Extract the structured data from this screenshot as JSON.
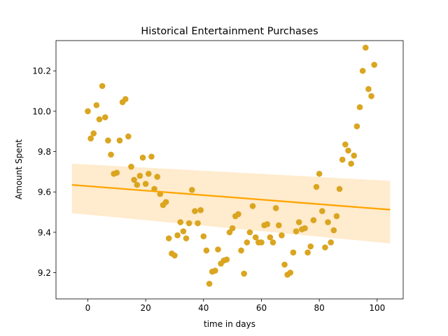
{
  "chart_data": {
    "type": "scatter",
    "title": "Historical Entertainment Purchases",
    "xlabel": "time in days",
    "ylabel": "Amount Spent",
    "xlim": [
      -11,
      109
    ],
    "ylim": [
      9.07,
      10.35
    ],
    "xticks": [
      0,
      20,
      40,
      60,
      80,
      100
    ],
    "yticks": [
      9.2,
      9.4,
      9.6,
      9.8,
      10.0,
      10.2
    ],
    "grid": false,
    "legend": "none",
    "point_color": "#DAA520",
    "line_color": "#FFA500",
    "band_color": "#FFE0B2",
    "points": {
      "x": [
        0,
        1,
        2,
        3,
        4,
        5,
        6,
        7,
        8,
        9,
        10,
        11,
        12,
        13,
        14,
        15,
        16,
        17,
        18,
        19,
        20,
        21,
        22,
        23,
        24,
        25,
        26,
        27,
        28,
        29,
        30,
        31,
        32,
        33,
        34,
        35,
        36,
        37,
        38,
        39,
        40,
        41,
        42,
        43,
        44,
        45,
        46,
        47,
        48,
        49,
        50,
        51,
        52,
        53,
        54,
        55,
        56,
        57,
        58,
        59,
        60,
        61,
        62,
        63,
        64,
        65,
        66,
        67,
        68,
        69,
        70,
        71,
        72,
        73,
        74,
        75,
        76,
        77,
        78,
        79,
        80,
        81,
        82,
        83,
        84,
        85,
        86,
        87,
        88,
        89,
        90,
        91,
        92,
        93,
        94,
        95,
        96,
        97,
        98,
        99
      ],
      "y": [
        10.0,
        9.865,
        9.89,
        10.03,
        9.96,
        10.125,
        9.97,
        9.855,
        9.785,
        9.69,
        9.695,
        9.855,
        10.045,
        10.06,
        9.875,
        9.725,
        9.66,
        9.635,
        9.68,
        9.77,
        9.64,
        9.69,
        9.775,
        9.615,
        9.675,
        9.59,
        9.535,
        9.55,
        9.37,
        9.295,
        9.285,
        9.385,
        9.45,
        9.405,
        9.37,
        9.445,
        9.61,
        9.505,
        9.445,
        9.51,
        9.38,
        9.31,
        9.145,
        9.205,
        9.21,
        9.315,
        9.245,
        9.26,
        9.265,
        9.4,
        9.42,
        9.48,
        9.49,
        9.31,
        9.195,
        9.35,
        9.4,
        9.53,
        9.375,
        9.35,
        9.35,
        9.435,
        9.44,
        9.375,
        9.35,
        9.52,
        9.435,
        9.385,
        9.24,
        9.19,
        9.2,
        9.3,
        9.405,
        9.45,
        9.415,
        9.42,
        9.3,
        9.33,
        9.46,
        9.625,
        9.69,
        9.505,
        9.325,
        9.45,
        9.35,
        9.41,
        9.48,
        9.615,
        9.76,
        9.835,
        9.805,
        9.74,
        9.78,
        9.925,
        10.02,
        10.2,
        10.315,
        10.11,
        10.075,
        10.23
      ]
    },
    "regression": {
      "x": [
        -5.5,
        104.5
      ],
      "y": [
        9.635,
        9.512
      ],
      "ci_upper": [
        9.74,
        9.655
      ],
      "ci_lower": [
        9.495,
        9.345
      ]
    }
  }
}
